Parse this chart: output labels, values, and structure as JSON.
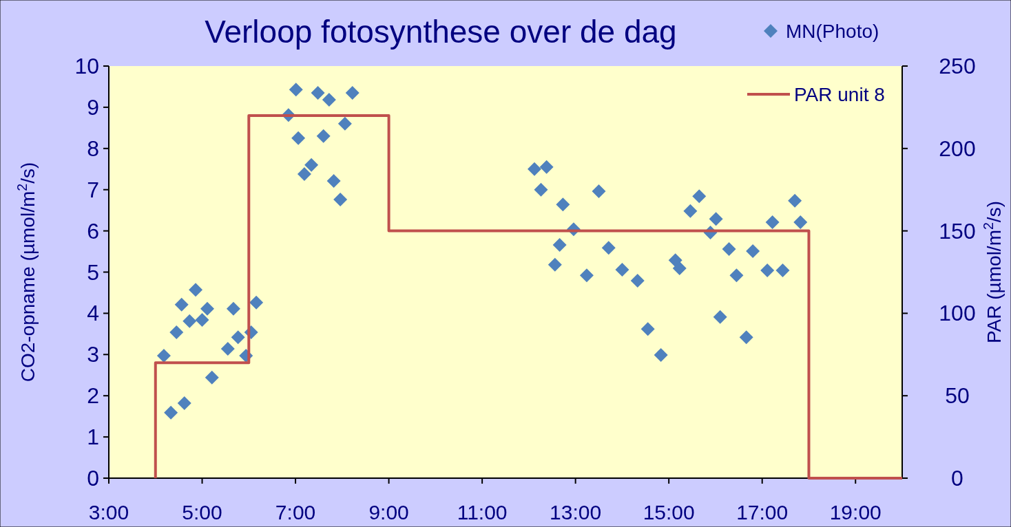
{
  "chart_data": {
    "type": "scatter",
    "title": "Verloop fotosynthese over de dag",
    "ylabel": "CO2-opname (µmol/m$^{2}$/s)",
    "y2label": "PAR (µmol/m$^{2}$/s)",
    "xlim": [
      3,
      20
    ],
    "xticks": [
      {
        "value": 3,
        "label": "3:00"
      },
      {
        "value": 5,
        "label": "5:00"
      },
      {
        "value": 7,
        "label": "7:00"
      },
      {
        "value": 9,
        "label": "9:00"
      },
      {
        "value": 11,
        "label": "11:00"
      },
      {
        "value": 13,
        "label": "13:00"
      },
      {
        "value": 15,
        "label": "15:00"
      },
      {
        "value": 17,
        "label": "17:00"
      },
      {
        "value": 19,
        "label": "19:00"
      }
    ],
    "ylim": [
      0,
      10
    ],
    "yticks": [
      0,
      1,
      2,
      3,
      4,
      5,
      6,
      7,
      8,
      9,
      10
    ],
    "y2lim": [
      0,
      250
    ],
    "y2ticks": [
      0,
      50,
      100,
      150,
      200,
      250
    ],
    "legend": "top right",
    "grid": false,
    "marker": "diamond",
    "series": [
      {
        "name": "MN(Photo)",
        "color": "#4f81bd",
        "x": [
          4.18,
          4.33,
          4.45,
          4.56,
          4.62,
          4.73,
          4.86,
          5.0,
          5.11,
          5.21,
          5.55,
          5.67,
          5.77,
          5.94,
          6.05,
          6.16,
          6.85,
          7.01,
          7.06,
          7.19,
          7.34,
          7.48,
          7.6,
          7.72,
          7.82,
          7.96,
          8.06,
          8.22,
          12.12,
          12.26,
          12.38,
          12.56,
          12.66,
          12.73,
          12.96,
          13.24,
          13.5,
          13.71,
          14.0,
          14.33,
          14.55,
          14.83,
          15.14,
          15.23,
          15.46,
          15.65,
          15.89,
          16.01,
          16.1,
          16.29,
          16.45,
          16.66,
          16.8,
          17.11,
          17.22,
          17.44,
          17.7,
          17.82
        ],
        "values": [
          2.97,
          1.59,
          3.54,
          4.21,
          1.82,
          3.81,
          4.57,
          3.84,
          4.11,
          2.44,
          3.14,
          4.11,
          3.42,
          2.97,
          3.54,
          4.26,
          8.81,
          9.43,
          8.25,
          7.38,
          7.6,
          9.35,
          8.3,
          9.18,
          7.21,
          6.76,
          8.6,
          9.35,
          7.5,
          7.0,
          7.55,
          5.18,
          5.66,
          6.64,
          6.04,
          4.92,
          6.96,
          5.59,
          5.06,
          4.79,
          3.62,
          2.99,
          5.29,
          5.09,
          6.48,
          6.84,
          5.96,
          6.29,
          3.91,
          5.56,
          4.92,
          3.42,
          5.51,
          5.04,
          6.21,
          5.04,
          6.73,
          6.21
        ]
      },
      {
        "name": "PAR unit 8",
        "type": "step",
        "axis": "y2",
        "color": "#c0504d",
        "marker": "none",
        "x": [
          4,
          4,
          6,
          9,
          18,
          20
        ],
        "values": [
          0,
          70,
          220,
          150,
          0,
          0
        ]
      }
    ]
  }
}
